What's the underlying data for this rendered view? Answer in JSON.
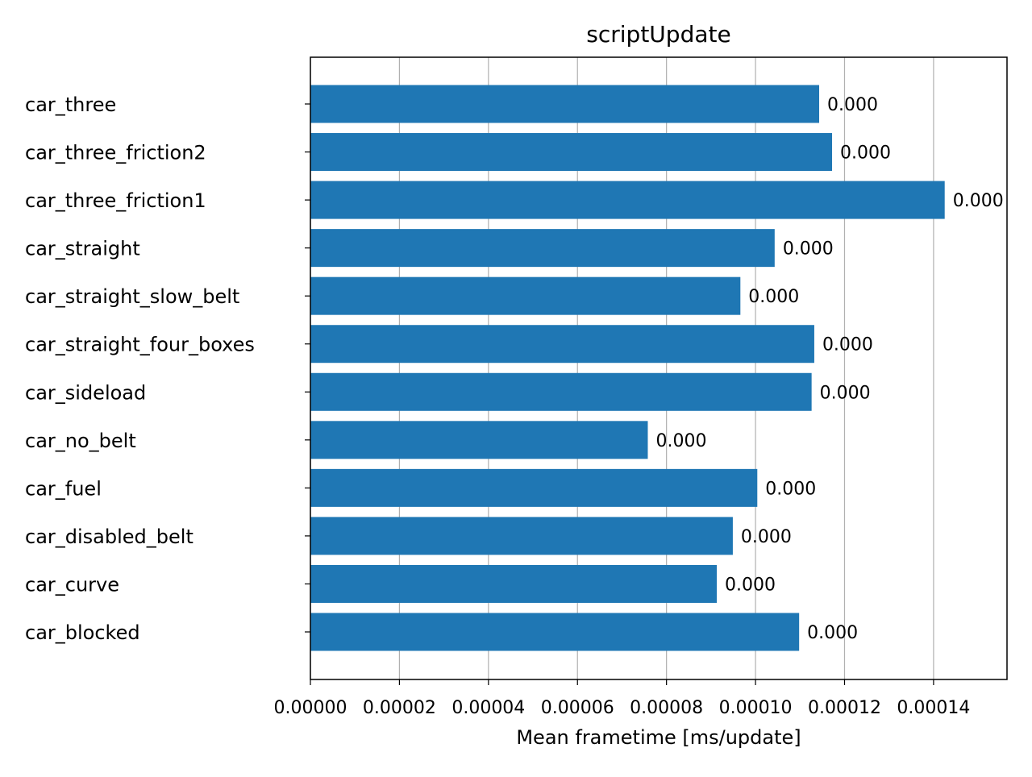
{
  "chart_data": {
    "type": "bar",
    "orientation": "horizontal",
    "title": "scriptUpdate",
    "xlabel": "Mean frametime [ms/update]",
    "ylabel": "",
    "xlim": [
      0,
      0.0001565
    ],
    "grid": "vertical",
    "bar_color": "#1f77b4",
    "categories": [
      "car_three",
      "car_three_friction2",
      "car_three_friction1",
      "car_straight",
      "car_straight_slow_belt",
      "car_straight_four_boxes",
      "car_sideload",
      "car_no_belt",
      "car_fuel",
      "car_disabled_belt",
      "car_curve",
      "car_blocked"
    ],
    "values": [
      0.0001143,
      0.0001172,
      0.0001425,
      0.0001043,
      9.66e-05,
      0.0001132,
      0.0001126,
      7.58e-05,
      0.0001004,
      9.49e-05,
      9.13e-05,
      0.0001098
    ],
    "data_labels": [
      "0.000",
      "0.000",
      "0.000",
      "0.000",
      "0.000",
      "0.000",
      "0.000",
      "0.000",
      "0.000",
      "0.000",
      "0.000",
      "0.000"
    ],
    "x_ticks": [
      0,
      2e-05,
      4e-05,
      6e-05,
      8e-05,
      0.0001,
      0.00012,
      0.00014
    ],
    "x_tick_labels": [
      "0.00000",
      "0.00002",
      "0.00004",
      "0.00006",
      "0.00008",
      "0.00010",
      "0.00012",
      "0.00014"
    ]
  }
}
